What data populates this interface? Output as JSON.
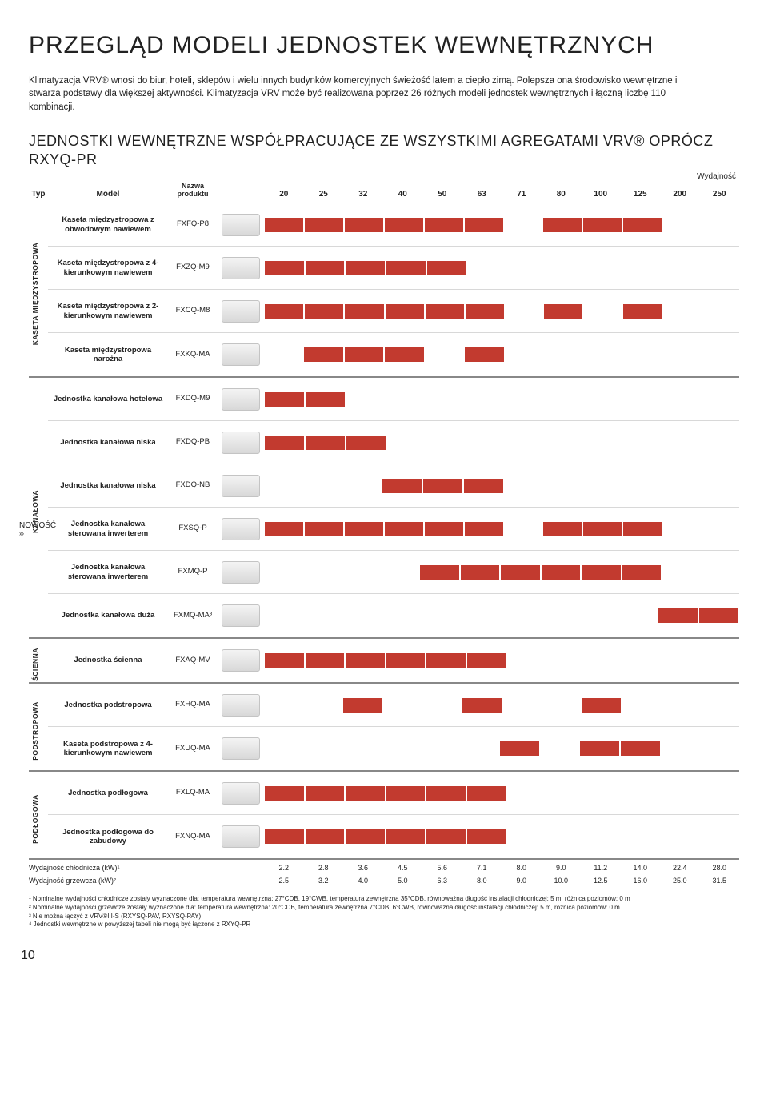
{
  "title": "PRZEGLĄD MODELI JEDNOSTEK WEWNĘTRZNYCH",
  "intro": "Klimatyzacja VRV® wnosi do biur, hoteli, sklepów i wielu innych budynków komercyjnych świeżość latem a ciepło zimą. Polepsza ona środowisko wewnętrzne i stwarza podstawy dla większej aktywności. Klimatyzacja VRV może być realizowana poprzez 26 różnych modeli jednostek wewnętrznych i łączną liczbę 110 kombinacji.",
  "subtitle": "JEDNOSTKI WEWNĘTRZNE WSPÓŁPRACUJĄCE ZE WSZYSTKIMI AGREGATAMI VRV® OPRÓCZ RXYQ-PR",
  "wydajnosc": "Wydajność",
  "header": {
    "typ": "Typ",
    "model": "Model",
    "nazwa": "Nazwa produktu"
  },
  "capacities": [
    "20",
    "25",
    "32",
    "40",
    "50",
    "63",
    "71",
    "80",
    "100",
    "125",
    "200",
    "250"
  ],
  "bar_color": "#c23a2f",
  "groups": [
    {
      "typ": "KASETA MIĘDZYSTROPOWA",
      "rows": [
        {
          "model": "Kaseta międzystropowa z obwodowym nawiewem",
          "name": "FXFQ-P8",
          "on": [
            1,
            1,
            1,
            1,
            1,
            1,
            0,
            1,
            1,
            1,
            0,
            0
          ]
        },
        {
          "model": "Kaseta międzystropowa z 4-kierunkowym nawiewem",
          "name": "FXZQ-M9",
          "on": [
            1,
            1,
            1,
            1,
            1,
            0,
            0,
            0,
            0,
            0,
            0,
            0
          ]
        },
        {
          "model": "Kaseta międzystropowa z 2-kierunkowym nawiewem",
          "name": "FXCQ-M8",
          "on": [
            1,
            1,
            1,
            1,
            1,
            1,
            0,
            1,
            0,
            1,
            0,
            0
          ]
        },
        {
          "model": "Kaseta międzystropowa narożna",
          "name": "FXKQ-MA",
          "on": [
            0,
            1,
            1,
            1,
            0,
            1,
            0,
            0,
            0,
            0,
            0,
            0
          ]
        }
      ]
    },
    {
      "typ": "KANAŁOWA",
      "nowosc_row": 3,
      "rows": [
        {
          "model": "Jednostka kanałowa hotelowa",
          "name": "FXDQ-M9",
          "on": [
            1,
            1,
            0,
            0,
            0,
            0,
            0,
            0,
            0,
            0,
            0,
            0
          ]
        },
        {
          "model": "Jednostka kanałowa niska",
          "name": "FXDQ-PB",
          "on": [
            1,
            1,
            1,
            0,
            0,
            0,
            0,
            0,
            0,
            0,
            0,
            0
          ]
        },
        {
          "model": "Jednostka kanałowa niska",
          "name": "FXDQ-NB",
          "on": [
            0,
            0,
            0,
            1,
            1,
            1,
            0,
            0,
            0,
            0,
            0,
            0
          ]
        },
        {
          "model": "Jednostka kanałowa sterowana inwerterem",
          "name": "FXSQ-P",
          "on": [
            1,
            1,
            1,
            1,
            1,
            1,
            0,
            1,
            1,
            1,
            0,
            0
          ]
        },
        {
          "model": "Jednostka kanałowa sterowana inwerterem",
          "name": "FXMQ-P",
          "on": [
            0,
            0,
            0,
            0,
            1,
            1,
            1,
            1,
            1,
            1,
            0,
            0
          ]
        },
        {
          "model": "Jednostka kanałowa duża",
          "name": "FXMQ-MA³",
          "on": [
            0,
            0,
            0,
            0,
            0,
            0,
            0,
            0,
            0,
            0,
            1,
            1
          ]
        }
      ]
    },
    {
      "typ": "ŚCIENNA",
      "rows": [
        {
          "model": "Jednostka ścienna",
          "name": "FXAQ-MV",
          "on": [
            1,
            1,
            1,
            1,
            1,
            1,
            0,
            0,
            0,
            0,
            0,
            0
          ]
        }
      ]
    },
    {
      "typ": "PODSTROPOWA",
      "rows": [
        {
          "model": "Jednostka podstropowa",
          "name": "FXHQ-MA",
          "on": [
            0,
            0,
            1,
            0,
            0,
            1,
            0,
            0,
            1,
            0,
            0,
            0
          ]
        },
        {
          "model": "Kaseta podstropowa z 4-kierunkowym nawiewem",
          "name": "FXUQ-MA",
          "on": [
            0,
            0,
            0,
            0,
            0,
            0,
            1,
            0,
            1,
            1,
            0,
            0
          ]
        }
      ]
    },
    {
      "typ": "PODŁOGOWA",
      "rows": [
        {
          "model": "Jednostka podłogowa",
          "name": "FXLQ-MA",
          "on": [
            1,
            1,
            1,
            1,
            1,
            1,
            0,
            0,
            0,
            0,
            0,
            0
          ]
        },
        {
          "model": "Jednostka podłogowa do zabudowy",
          "name": "FXNQ-MA",
          "on": [
            1,
            1,
            1,
            1,
            1,
            1,
            0,
            0,
            0,
            0,
            0,
            0
          ]
        }
      ]
    }
  ],
  "footer": {
    "cooling": {
      "label": "Wydajność chłodnicza (kW)¹",
      "values": [
        "2.2",
        "2.8",
        "3.6",
        "4.5",
        "5.6",
        "7.1",
        "8.0",
        "9.0",
        "11.2",
        "14.0",
        "22.4",
        "28.0"
      ]
    },
    "heating": {
      "label": "Wydajność grzewcza (kW)²",
      "values": [
        "2.5",
        "3.2",
        "4.0",
        "5.0",
        "6.3",
        "8.0",
        "9.0",
        "10.0",
        "12.5",
        "16.0",
        "25.0",
        "31.5"
      ]
    }
  },
  "footnotes": [
    "¹ Nominalne wydajności chłodnicze zostały wyznaczone dla: temperatura wewnętrzna: 27°CDB, 19°CWB, temperatura zewnętrzna 35°CDB, równoważna długość instalacji chłodniczej: 5 m, różnica poziomów: 0 m",
    "² Nominalne wydajności grzewcze zostały wyznaczone dla: temperatura wewnętrzna: 20°CDB, temperatura zewnętrzna 7°CDB, 6°CWB, równoważna długość instalacji chłodniczej: 5 m, różnica poziomów: 0 m",
    "³ Nie można łączyć z VRV®III-S (RXYSQ-PAV, RXYSQ-PAY)",
    "⁴ Jednostki wewnętrzne w powyższej tabeli nie mogą być łączone z RXYQ-PR"
  ],
  "nowosc": "NOWOŚĆ",
  "page_number": "10"
}
